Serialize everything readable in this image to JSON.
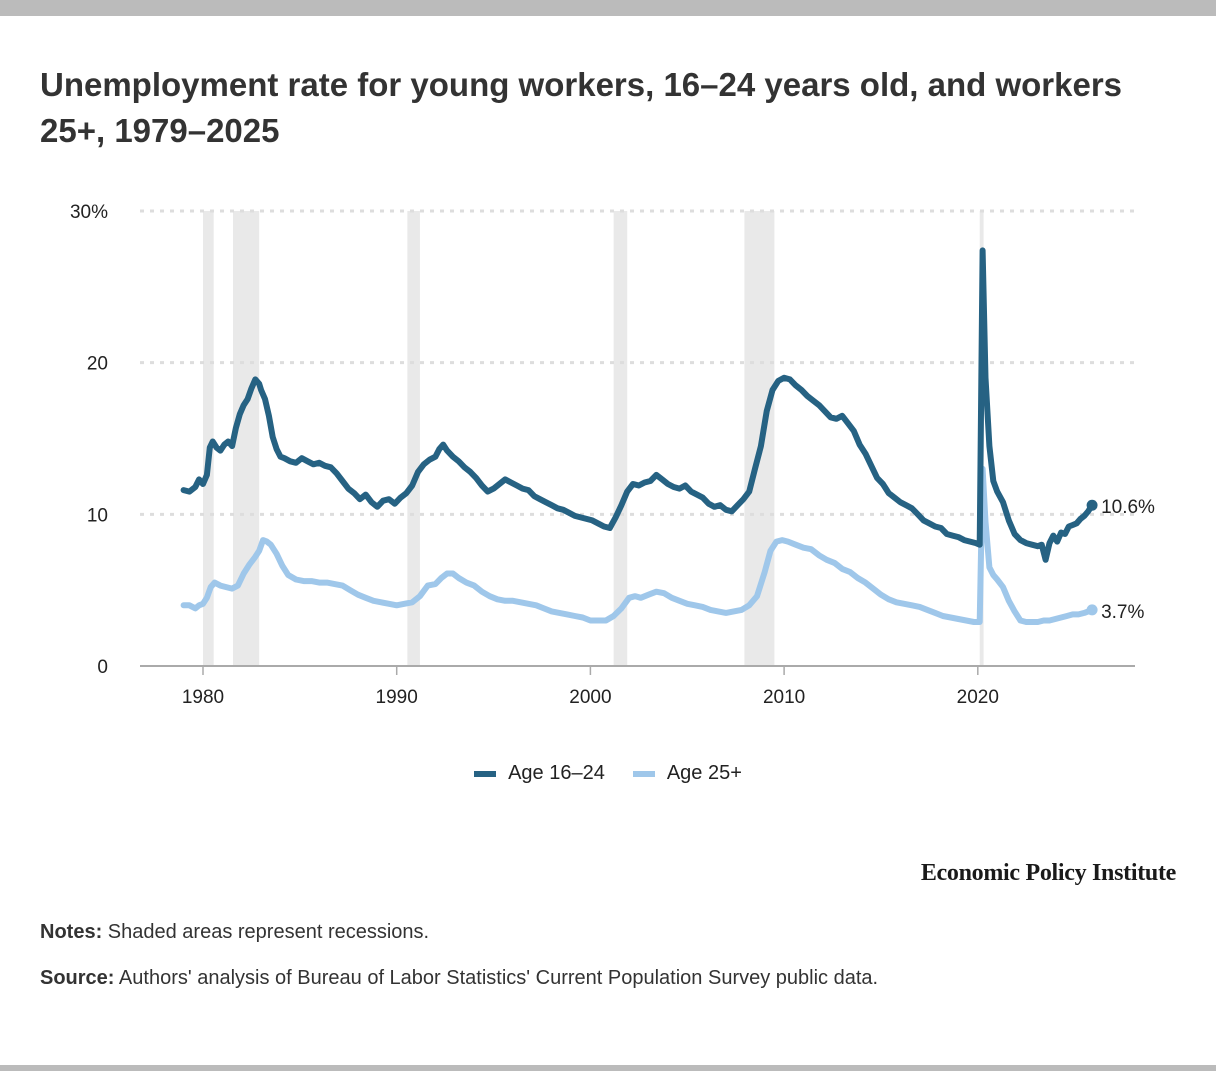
{
  "title": "Unemployment rate for young workers, 16–24 years old, and workers 25+, 1979–2025",
  "legend": [
    {
      "label": "Age 16–24",
      "color": "#266283"
    },
    {
      "label": "Age 25+",
      "color": "#9fc7ea"
    }
  ],
  "brand": "Economic Policy Institute",
  "notes": {
    "label": "Notes:",
    "text": " Shaded areas represent recessions."
  },
  "source": {
    "label": "Source:",
    "text": " Authors' analysis of Bureau of Labor Statistics' Current Population Survey public data."
  },
  "colors": {
    "recession": "#e9e9e9",
    "grid": "#dddddd",
    "axis": "#aaaaaa",
    "text": "#222222"
  },
  "chart_data": {
    "type": "line",
    "title": "Unemployment rate for young workers, 16–24 years old, and workers 25+, 1979–2025",
    "xlabel": "",
    "ylabel": "",
    "xlim": [
      1976.8,
      2028.2
    ],
    "ylim": [
      0,
      30
    ],
    "yticks": [
      0,
      10,
      20,
      30
    ],
    "ytick_labels": [
      "0",
      "10",
      "20",
      "30%"
    ],
    "xticks": [
      1980,
      1990,
      2000,
      2010,
      2020
    ],
    "xtick_labels": [
      "1980",
      "1990",
      "2000",
      "2010",
      "2020"
    ],
    "grid": true,
    "legend_position": "bottom-center",
    "recessions": [
      [
        1980.0,
        1980.55
      ],
      [
        1981.55,
        1982.9
      ],
      [
        1990.55,
        1991.2
      ],
      [
        2001.2,
        2001.9
      ],
      [
        2007.95,
        2009.5
      ],
      [
        2020.1,
        2020.3
      ]
    ],
    "end_labels": [
      "10.6%",
      "3.7%"
    ],
    "series": [
      {
        "name": "Age 16–24",
        "x": [
          1979.0,
          1979.3,
          1979.6,
          1979.8,
          1980.0,
          1980.2,
          1980.35,
          1980.5,
          1980.7,
          1980.9,
          1981.1,
          1981.3,
          1981.5,
          1981.7,
          1981.9,
          1982.1,
          1982.3,
          1982.5,
          1982.7,
          1982.9,
          1983.0,
          1983.2,
          1983.4,
          1983.6,
          1983.8,
          1984.0,
          1984.2,
          1984.5,
          1984.8,
          1985.1,
          1985.4,
          1985.7,
          1986.0,
          1986.3,
          1986.6,
          1986.9,
          1987.2,
          1987.5,
          1987.8,
          1988.1,
          1988.4,
          1988.7,
          1989.0,
          1989.3,
          1989.6,
          1989.9,
          1990.2,
          1990.5,
          1990.8,
          1991.1,
          1991.4,
          1991.7,
          1992.0,
          1992.2,
          1992.4,
          1992.6,
          1992.9,
          1993.2,
          1993.5,
          1993.8,
          1994.1,
          1994.4,
          1994.7,
          1995.0,
          1995.3,
          1995.6,
          1995.9,
          1996.2,
          1996.5,
          1996.8,
          1997.1,
          1997.4,
          1997.7,
          1998.0,
          1998.3,
          1998.6,
          1998.9,
          1999.2,
          1999.5,
          1999.8,
          2000.1,
          2000.4,
          2000.7,
          2001.0,
          2001.3,
          2001.6,
          2001.9,
          2002.2,
          2002.5,
          2002.8,
          2003.1,
          2003.4,
          2003.7,
          2004.0,
          2004.3,
          2004.6,
          2004.9,
          2005.2,
          2005.5,
          2005.8,
          2006.1,
          2006.4,
          2006.7,
          2007.0,
          2007.3,
          2007.6,
          2007.9,
          2008.2,
          2008.5,
          2008.8,
          2009.1,
          2009.4,
          2009.7,
          2010.0,
          2010.3,
          2010.6,
          2010.9,
          2011.2,
          2011.5,
          2011.8,
          2012.1,
          2012.4,
          2012.7,
          2013.0,
          2013.3,
          2013.6,
          2013.9,
          2014.2,
          2014.5,
          2014.8,
          2015.1,
          2015.4,
          2015.7,
          2016.0,
          2016.3,
          2016.6,
          2016.9,
          2017.2,
          2017.5,
          2017.8,
          2018.1,
          2018.4,
          2018.7,
          2019.0,
          2019.3,
          2019.6,
          2019.9,
          2020.1,
          2020.25,
          2020.4,
          2020.6,
          2020.8,
          2021.0,
          2021.3,
          2021.6,
          2021.9,
          2022.2,
          2022.5,
          2022.8,
          2023.1,
          2023.3,
          2023.5,
          2023.7,
          2023.9,
          2024.1,
          2024.3,
          2024.5,
          2024.7,
          2024.9,
          2025.1,
          2025.3,
          2025.5,
          2025.7,
          2025.9
        ],
        "values": [
          11.6,
          11.5,
          11.8,
          12.3,
          12.0,
          12.6,
          14.4,
          14.8,
          14.4,
          14.2,
          14.6,
          14.8,
          14.5,
          15.7,
          16.6,
          17.2,
          17.6,
          18.3,
          18.9,
          18.6,
          18.2,
          17.6,
          16.5,
          15.1,
          14.3,
          13.8,
          13.7,
          13.5,
          13.4,
          13.7,
          13.5,
          13.3,
          13.4,
          13.2,
          13.1,
          12.7,
          12.2,
          11.7,
          11.4,
          11.0,
          11.3,
          10.8,
          10.5,
          10.9,
          11.0,
          10.7,
          11.1,
          11.4,
          11.9,
          12.8,
          13.3,
          13.6,
          13.8,
          14.3,
          14.6,
          14.2,
          13.8,
          13.5,
          13.1,
          12.8,
          12.4,
          11.9,
          11.5,
          11.7,
          12.0,
          12.3,
          12.1,
          11.9,
          11.7,
          11.6,
          11.2,
          11.0,
          10.8,
          10.6,
          10.4,
          10.3,
          10.1,
          9.9,
          9.8,
          9.7,
          9.6,
          9.4,
          9.2,
          9.1,
          9.8,
          10.6,
          11.5,
          12.0,
          11.9,
          12.1,
          12.2,
          12.6,
          12.3,
          12.0,
          11.8,
          11.7,
          11.9,
          11.5,
          11.3,
          11.1,
          10.7,
          10.5,
          10.6,
          10.3,
          10.2,
          10.6,
          11.0,
          11.5,
          13.0,
          14.5,
          16.8,
          18.2,
          18.8,
          19.0,
          18.9,
          18.5,
          18.2,
          17.8,
          17.5,
          17.2,
          16.8,
          16.4,
          16.3,
          16.5,
          16.0,
          15.5,
          14.6,
          14.0,
          13.2,
          12.4,
          12.0,
          11.4,
          11.1,
          10.8,
          10.6,
          10.4,
          10.0,
          9.6,
          9.4,
          9.2,
          9.1,
          8.7,
          8.6,
          8.5,
          8.3,
          8.2,
          8.1,
          8.0,
          27.4,
          19.0,
          14.5,
          12.2,
          11.5,
          10.8,
          9.6,
          8.7,
          8.3,
          8.1,
          8.0,
          7.9,
          8.0,
          7.0,
          8.1,
          8.6,
          8.2,
          8.8,
          8.7,
          9.2,
          9.3,
          9.4,
          9.7,
          9.9,
          10.2,
          10.6
        ]
      },
      {
        "name": "Age 25+",
        "x": [
          1979.0,
          1979.3,
          1979.6,
          1979.8,
          1980.0,
          1980.2,
          1980.4,
          1980.6,
          1980.9,
          1981.2,
          1981.5,
          1981.8,
          1982.1,
          1982.4,
          1982.7,
          1982.9,
          1983.1,
          1983.3,
          1983.5,
          1983.8,
          1984.1,
          1984.4,
          1984.8,
          1985.2,
          1985.6,
          1986.0,
          1986.4,
          1986.8,
          1987.2,
          1987.6,
          1988.0,
          1988.4,
          1988.8,
          1989.2,
          1989.6,
          1990.0,
          1990.4,
          1990.8,
          1991.2,
          1991.6,
          1992.0,
          1992.3,
          1992.6,
          1992.9,
          1993.2,
          1993.6,
          1994.0,
          1994.4,
          1994.8,
          1995.2,
          1995.6,
          1996.0,
          1996.4,
          1996.8,
          1997.2,
          1997.6,
          1998.0,
          1998.4,
          1998.8,
          1999.2,
          1999.6,
          2000.0,
          2000.4,
          2000.8,
          2001.2,
          2001.6,
          2002.0,
          2002.3,
          2002.6,
          2003.0,
          2003.4,
          2003.8,
          2004.2,
          2004.6,
          2005.0,
          2005.4,
          2005.8,
          2006.2,
          2006.6,
          2007.0,
          2007.4,
          2007.8,
          2008.2,
          2008.6,
          2009.0,
          2009.3,
          2009.6,
          2009.9,
          2010.2,
          2010.6,
          2011.0,
          2011.4,
          2011.8,
          2012.2,
          2012.6,
          2013.0,
          2013.4,
          2013.8,
          2014.2,
          2014.6,
          2015.0,
          2015.4,
          2015.8,
          2016.2,
          2016.6,
          2017.0,
          2017.4,
          2017.8,
          2018.2,
          2018.6,
          2019.0,
          2019.4,
          2019.8,
          2020.1,
          2020.25,
          2020.4,
          2020.6,
          2020.8,
          2021.0,
          2021.3,
          2021.6,
          2021.9,
          2022.2,
          2022.5,
          2022.8,
          2023.1,
          2023.4,
          2023.7,
          2024.0,
          2024.3,
          2024.6,
          2024.9,
          2025.2,
          2025.5,
          2025.9
        ],
        "values": [
          4.0,
          4.0,
          3.8,
          4.0,
          4.1,
          4.5,
          5.2,
          5.5,
          5.3,
          5.2,
          5.1,
          5.3,
          6.1,
          6.7,
          7.2,
          7.6,
          8.3,
          8.2,
          8.0,
          7.4,
          6.6,
          6.0,
          5.7,
          5.6,
          5.6,
          5.5,
          5.5,
          5.4,
          5.3,
          5.0,
          4.7,
          4.5,
          4.3,
          4.2,
          4.1,
          4.0,
          4.1,
          4.2,
          4.6,
          5.3,
          5.4,
          5.8,
          6.1,
          6.1,
          5.8,
          5.5,
          5.3,
          4.9,
          4.6,
          4.4,
          4.3,
          4.3,
          4.2,
          4.1,
          4.0,
          3.8,
          3.6,
          3.5,
          3.4,
          3.3,
          3.2,
          3.0,
          3.0,
          3.0,
          3.3,
          3.8,
          4.5,
          4.6,
          4.5,
          4.7,
          4.9,
          4.8,
          4.5,
          4.3,
          4.1,
          4.0,
          3.9,
          3.7,
          3.6,
          3.5,
          3.6,
          3.7,
          4.0,
          4.6,
          6.2,
          7.6,
          8.2,
          8.3,
          8.2,
          8.0,
          7.8,
          7.7,
          7.3,
          7.0,
          6.8,
          6.4,
          6.2,
          5.8,
          5.5,
          5.1,
          4.7,
          4.4,
          4.2,
          4.1,
          4.0,
          3.9,
          3.7,
          3.5,
          3.3,
          3.2,
          3.1,
          3.0,
          2.9,
          2.9,
          13.0,
          9.5,
          6.5,
          6.0,
          5.7,
          5.2,
          4.3,
          3.6,
          3.0,
          2.9,
          2.9,
          2.9,
          3.0,
          3.0,
          3.1,
          3.2,
          3.3,
          3.4,
          3.4,
          3.5,
          3.7
        ]
      }
    ]
  }
}
